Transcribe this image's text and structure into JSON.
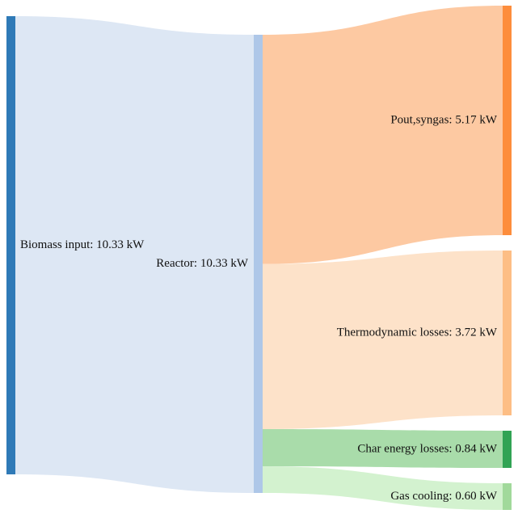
{
  "diagram": {
    "type": "sankey",
    "unit": "kW",
    "nodes": [
      {
        "id": "biomass",
        "label": "Biomass input: 10.33 kW",
        "value": 10.33,
        "color": "#2f7ab7"
      },
      {
        "id": "reactor",
        "label": "Reactor: 10.33 kW",
        "value": 10.33,
        "color": "#aec7e8"
      },
      {
        "id": "syngas",
        "label": "Pout,syngas: 5.17 kW",
        "value": 5.17,
        "color": "#fd8d3c"
      },
      {
        "id": "thermo",
        "label": "Thermodynamic losses: 3.72 kW",
        "value": 3.72,
        "color": "#fdbe85"
      },
      {
        "id": "char",
        "label": "Char energy losses: 0.84 kW",
        "value": 0.84,
        "color": "#31a354"
      },
      {
        "id": "gas",
        "label": "Gas cooling: 0.60 kW",
        "value": 0.6,
        "color": "#a1d99b"
      }
    ],
    "links": [
      {
        "source": "biomass",
        "target": "reactor",
        "value": 10.33,
        "color": "#dde7f4"
      },
      {
        "source": "reactor",
        "target": "syngas",
        "value": 5.17,
        "color": "#fdc9a2"
      },
      {
        "source": "reactor",
        "target": "thermo",
        "value": 3.72,
        "color": "#fde2c9"
      },
      {
        "source": "reactor",
        "target": "char",
        "value": 0.84,
        "color": "#a9dcaa"
      },
      {
        "source": "reactor",
        "target": "gas",
        "value": 0.6,
        "color": "#d3f2cf"
      }
    ]
  }
}
